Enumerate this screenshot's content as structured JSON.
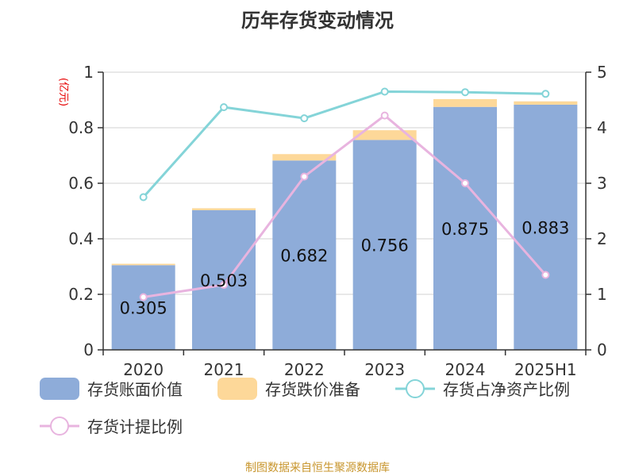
{
  "chart_data": {
    "type": "bar",
    "title": "历年存货变动情况",
    "unit_label": "(亿元)",
    "categories": [
      "2020",
      "2021",
      "2022",
      "2023",
      "2024",
      "2025H1"
    ],
    "ylim_left": [
      0,
      1
    ],
    "yticks_left": [
      "0",
      "0.2",
      "0.4",
      "0.6",
      "0.8",
      "1"
    ],
    "ylim_right": [
      0,
      5
    ],
    "yticks_right": [
      "0",
      "1",
      "2",
      "3",
      "4",
      "5"
    ],
    "series": [
      {
        "name": "存货账面价值",
        "kind": "bar",
        "axis": "left",
        "stack": "s",
        "color": "#8eacd9",
        "values": [
          0.305,
          0.503,
          0.682,
          0.756,
          0.875,
          0.883
        ],
        "labels": [
          "0.305",
          "0.503",
          "0.682",
          "0.756",
          "0.875",
          "0.883"
        ]
      },
      {
        "name": "存货跌价准备",
        "kind": "bar",
        "axis": "left",
        "stack": "s",
        "color": "#fdd899",
        "values": [
          0.005,
          0.007,
          0.023,
          0.035,
          0.028,
          0.012
        ]
      },
      {
        "name": "存货占净资产比例",
        "kind": "line",
        "axis": "right",
        "color": "#84d4d8",
        "values": [
          2.75,
          4.37,
          4.17,
          4.65,
          4.64,
          4.61
        ]
      },
      {
        "name": "存货计提比例",
        "kind": "line",
        "axis": "right",
        "color": "#e8b4df",
        "values": [
          0.95,
          1.17,
          3.12,
          4.22,
          3.0,
          1.35
        ]
      }
    ],
    "grid": true,
    "legend_position": "bottom"
  },
  "source": "制图数据来自恒生聚源数据库"
}
